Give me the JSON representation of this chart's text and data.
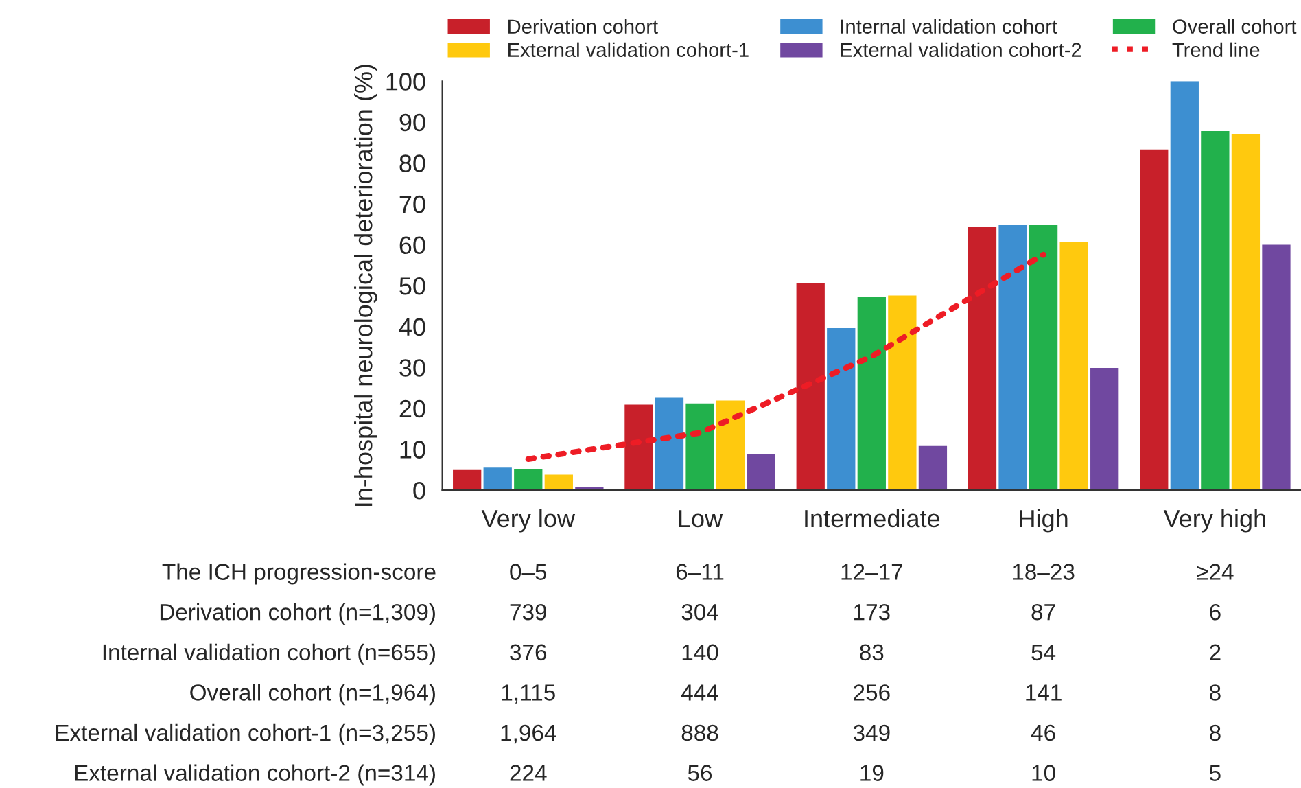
{
  "chart_data": {
    "type": "bar",
    "ylabel": "In-hospital neurological deterioration (%)",
    "categories": [
      "Very low",
      "Low",
      "Intermediate",
      "High",
      "Very high"
    ],
    "series": [
      {
        "name": "Derivation cohort",
        "color": "#c8202a",
        "values": [
          5.1,
          20.9,
          50.6,
          64.4,
          83.3
        ]
      },
      {
        "name": "Internal validation cohort",
        "color": "#3d8fd1",
        "values": [
          5.5,
          22.6,
          39.6,
          64.8,
          100
        ]
      },
      {
        "name": "Overall cohort",
        "color": "#22b14c",
        "values": [
          5.2,
          21.2,
          47.3,
          64.8,
          87.8
        ]
      },
      {
        "name": "External validation cohort-1",
        "color": "#ffc90e",
        "values": [
          3.8,
          21.9,
          47.6,
          60.7,
          87.1
        ]
      },
      {
        "name": "External validation cohort-2",
        "color": "#7048a0",
        "values": [
          0.8,
          8.9,
          10.8,
          29.9,
          60.0
        ]
      },
      {
        "name": "Trend line",
        "type": "line",
        "color": "#ee1c25",
        "line_style": "dotted",
        "values": [
          7.6,
          14,
          32.7,
          57.6,
          null
        ]
      }
    ],
    "ylim": [
      0,
      100
    ],
    "yticks": [
      0,
      10,
      20,
      30,
      40,
      50,
      60,
      70,
      80,
      90,
      100
    ],
    "grid": false,
    "legend": "top",
    "annotations": [
      "The ICH progression-score",
      "0–5",
      "6–11",
      "12–17",
      "18–23",
      "≥24",
      "Derivation cohort (n=1,309)",
      "739",
      "304",
      "173",
      "87",
      "6",
      "Internal validation cohort (n=655)",
      "376",
      "140",
      "83",
      "54",
      "2",
      "Overall cohort (n=1,964)",
      "1,115",
      "444",
      "256",
      "141",
      "8",
      "External validation cohort-1 (n=3,255)",
      "1,964",
      "888",
      "349",
      "46",
      "8",
      "External validation cohort-2 (n=314)",
      "224",
      "56",
      "19",
      "10",
      "5"
    ]
  }
}
